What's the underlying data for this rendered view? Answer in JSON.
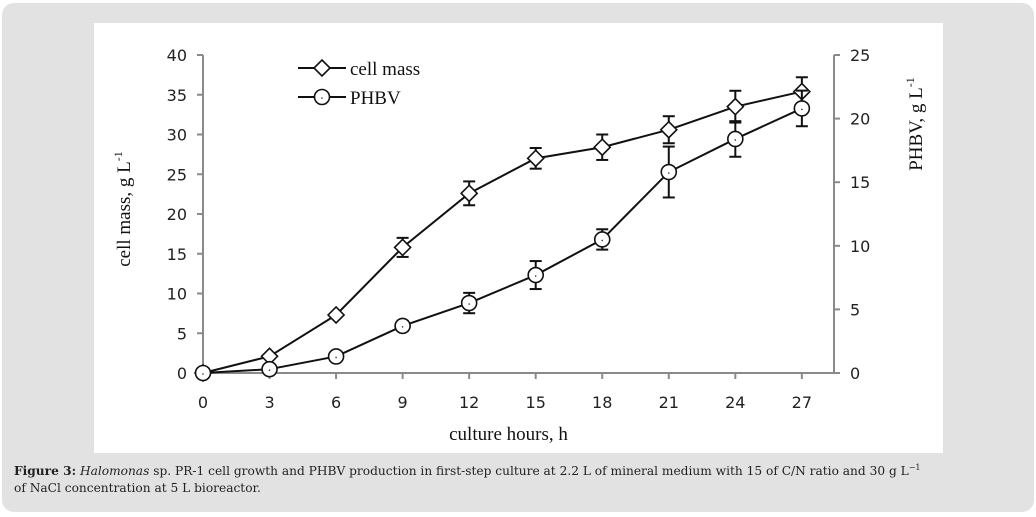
{
  "figure": {
    "caption_label": "Figure 3:",
    "caption_species": "Halomonas",
    "caption_text_a": " sp. PR-1 cell growth and PHBV production in first-step culture at 2.2 L of mineral medium with 15 of C/N ratio and 30 g L",
    "caption_sup": "−1",
    "caption_text_b": "of NaCl concentration at 5 L bioreactor."
  },
  "chart_data": {
    "type": "line",
    "title": "",
    "xlabel": "culture hours, h",
    "ylabel_left": "cell mass, g L",
    "ylabel_left_sup": "-1",
    "ylabel_right": "PHBV, g L",
    "ylabel_right_sup": "-1",
    "x": [
      0,
      3,
      6,
      9,
      12,
      15,
      18,
      21,
      24,
      27
    ],
    "x_ticks": [
      "0",
      "3",
      "6",
      "9",
      "12",
      "15",
      "18",
      "21",
      "24",
      "27"
    ],
    "xlim": [
      0,
      28
    ],
    "ylim_left": [
      0,
      40
    ],
    "yticks_left": [
      "0",
      "5",
      "10",
      "15",
      "20",
      "25",
      "30",
      "35",
      "40"
    ],
    "ylim_right": [
      0,
      25
    ],
    "yticks_right": [
      "0",
      "5",
      "10",
      "15",
      "20",
      "25"
    ],
    "grid": false,
    "legend_position": "top-left",
    "series": [
      {
        "name": "cell mass",
        "axis": "left",
        "marker": "diamond",
        "values": [
          0,
          2.1,
          7.3,
          15.8,
          22.6,
          27.0,
          28.4,
          30.6,
          33.5,
          35.4
        ],
        "errors": [
          0,
          0,
          0,
          1.2,
          1.5,
          1.3,
          1.6,
          1.7,
          2.0,
          1.8
        ]
      },
      {
        "name": "PHBV",
        "axis": "right",
        "marker": "circle",
        "values": [
          0,
          0.3,
          1.3,
          3.7,
          5.5,
          7.7,
          10.5,
          15.8,
          18.4,
          20.8
        ],
        "errors": [
          0,
          0,
          0,
          0.4,
          0.8,
          1.1,
          0.8,
          2.0,
          1.4,
          1.4
        ]
      }
    ],
    "colors": {
      "axis": "#8a8a8a",
      "line": "#111111",
      "marker_fill": "#ffffff"
    }
  }
}
